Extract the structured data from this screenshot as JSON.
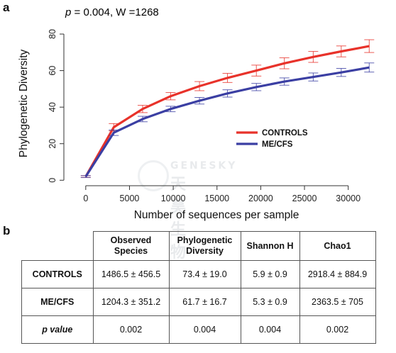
{
  "panel_a_label": "a",
  "panel_b_label": "b",
  "stat_note": {
    "p_symbol": "p",
    "text": " = 0.004, W =1268"
  },
  "watermark": {
    "text_en": "GENESKY",
    "text_cn": "天昊生物"
  },
  "chart_data": {
    "type": "line",
    "xlabel": "Number of sequences per sample",
    "ylabel": "Phylogenetic Diversity",
    "xlim": [
      -2500,
      34000
    ],
    "ylim": [
      -3,
      87
    ],
    "xticks": [
      0,
      5000,
      10000,
      15000,
      20000,
      25000,
      30000
    ],
    "yticks": [
      0,
      20,
      40,
      60,
      80
    ],
    "grid": false,
    "legend_position": "right",
    "series": [
      {
        "name": "CONTROLS",
        "color": "#e8322a",
        "x": [
          0,
          3200,
          6500,
          9700,
          13000,
          16200,
          19500,
          22700,
          26000,
          29200,
          32400
        ],
        "y": [
          2,
          29,
          39,
          46,
          51.5,
          56,
          60,
          64,
          67.5,
          70.5,
          73.4
        ],
        "err": [
          0.5,
          2,
          2,
          2,
          2.5,
          2.5,
          3,
          3,
          3,
          3,
          3.5
        ]
      },
      {
        "name": "ME/CFS",
        "color": "#3b3fa3",
        "x": [
          0,
          3200,
          6500,
          9700,
          13000,
          16200,
          19500,
          22700,
          26000,
          29200,
          32400
        ],
        "y": [
          2,
          26,
          33.5,
          39,
          43.5,
          47.5,
          51,
          54,
          56.5,
          59,
          61.7
        ],
        "err": [
          0.5,
          1.5,
          1.5,
          1.5,
          1.8,
          2,
          2,
          2,
          2.2,
          2.2,
          2.5
        ]
      }
    ]
  },
  "table": {
    "headers": [
      "Observed Species",
      "Phylogenetic Diversity",
      "Shannon H",
      "Chao1"
    ],
    "rows": [
      {
        "label": "CONTROLS",
        "values": [
          "1486.5 ± 456.5",
          "73.4 ± 19.0",
          "5.9 ± 0.9",
          "2918.4 ± 884.9"
        ]
      },
      {
        "label": "ME/CFS",
        "values": [
          "1204.3 ± 351.2",
          "61.7 ± 16.7",
          "5.3 ± 0.9",
          "2363.5 ± 705"
        ]
      },
      {
        "label": "p value",
        "values": [
          "0.002",
          "0.004",
          "0.004",
          "0.002"
        ]
      }
    ]
  }
}
